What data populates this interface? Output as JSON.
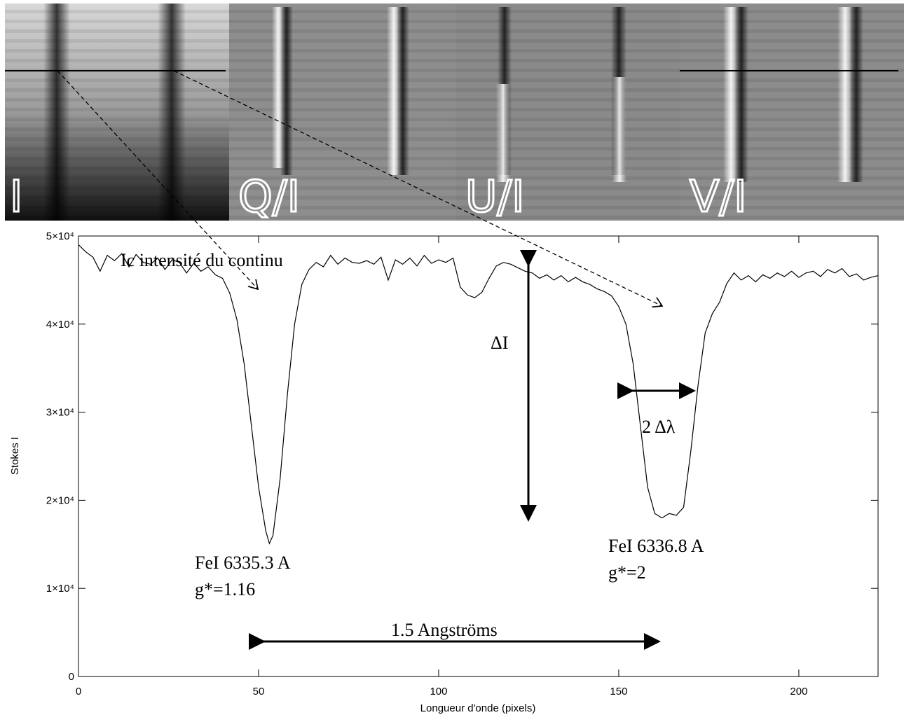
{
  "panels": [
    "I",
    "Q/I",
    "U/I",
    "V/I"
  ],
  "chart_data": {
    "type": "line",
    "x_label": "Longueur d'onde (pixels)",
    "y_label": "Stokes I",
    "annotations": [
      "Ic intensité du continu",
      "ΔI",
      "2 Δλ",
      "FeI  6335.3 A",
      "g*=1.16",
      "FeI  6336.8 A",
      "g*=2",
      "1.5 Angströms"
    ],
    "xlim": [
      0,
      222
    ],
    "ylim": [
      0,
      50000
    ],
    "xticks": [
      0,
      50,
      100,
      150,
      200
    ],
    "yticks": [
      {
        "value": 0,
        "label": "0"
      },
      {
        "value": 10000,
        "label": "1×10⁴"
      },
      {
        "value": 20000,
        "label": "2×10⁴"
      },
      {
        "value": 30000,
        "label": "3×10⁴"
      },
      {
        "value": 40000,
        "label": "4×10⁴"
      },
      {
        "value": 50000,
        "label": "5×10⁴"
      }
    ],
    "color": "#000000",
    "x": [
      0,
      2,
      4,
      6,
      8,
      10,
      12,
      14,
      16,
      18,
      20,
      22,
      24,
      26,
      28,
      30,
      32,
      34,
      36,
      38,
      40,
      42,
      44,
      46,
      48,
      50,
      52,
      53,
      54,
      56,
      58,
      60,
      62,
      64,
      66,
      68,
      70,
      72,
      74,
      76,
      78,
      80,
      82,
      84,
      86,
      88,
      90,
      92,
      94,
      96,
      98,
      100,
      102,
      104,
      106,
      108,
      110,
      112,
      114,
      116,
      118,
      120,
      122,
      124,
      126,
      128,
      130,
      132,
      134,
      136,
      138,
      140,
      142,
      144,
      146,
      148,
      150,
      152,
      154,
      156,
      158,
      160,
      162,
      164,
      166,
      168,
      170,
      172,
      174,
      176,
      178,
      180,
      182,
      184,
      186,
      188,
      190,
      192,
      194,
      196,
      198,
      200,
      202,
      204,
      206,
      208,
      210,
      212,
      214,
      216,
      218,
      220,
      222
    ],
    "values": [
      49000,
      48200,
      47600,
      46000,
      47800,
      47200,
      48000,
      46500,
      47900,
      47000,
      46800,
      47500,
      46200,
      47300,
      47000,
      45800,
      46900,
      46000,
      46500,
      45600,
      45200,
      43500,
      40500,
      35500,
      28500,
      21500,
      16500,
      15100,
      16000,
      22500,
      32000,
      40000,
      44500,
      46200,
      47000,
      46500,
      47800,
      46800,
      47500,
      47000,
      46900,
      47200,
      46800,
      47600,
      45000,
      47300,
      46800,
      47500,
      46600,
      47800,
      46900,
      47300,
      47000,
      47500,
      44200,
      43300,
      43000,
      43600,
      45200,
      46600,
      47000,
      46800,
      46400,
      46000,
      45800,
      45200,
      45600,
      45000,
      45500,
      44800,
      45300,
      44800,
      44500,
      44000,
      43700,
      43200,
      42000,
      40000,
      35500,
      28500,
      21500,
      18500,
      18000,
      18500,
      18300,
      19200,
      25500,
      33000,
      39000,
      41200,
      42500,
      44600,
      45800,
      45000,
      45500,
      44800,
      45600,
      45200,
      45800,
      45400,
      46000,
      45300,
      45800,
      46000,
      45400,
      46200,
      45800,
      46300,
      45400,
      45700,
      45000,
      45300,
      45500
    ]
  }
}
